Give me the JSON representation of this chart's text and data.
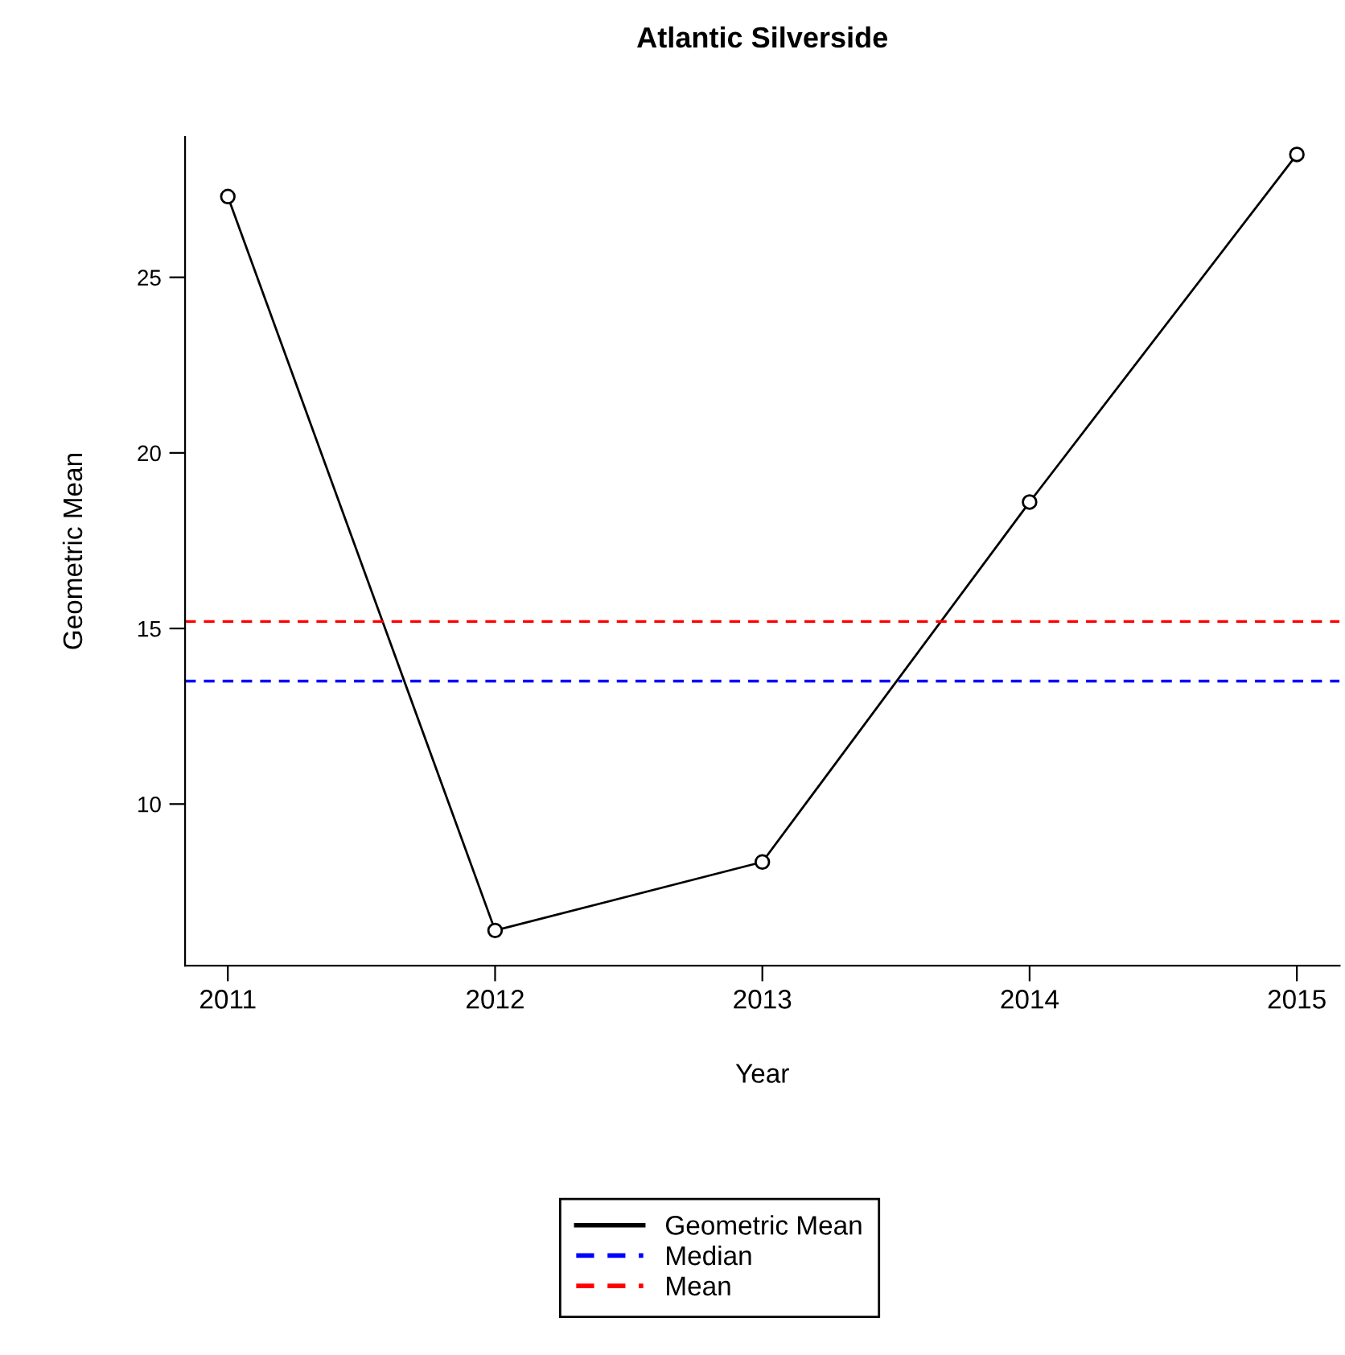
{
  "chart_data": {
    "type": "line",
    "title": "Atlantic Silverside",
    "xlabel": "Year",
    "ylabel": "Geometric Mean",
    "x": [
      2011,
      2012,
      2013,
      2014,
      2015
    ],
    "series": [
      {
        "name": "Geometric Mean",
        "color": "#000000",
        "values": [
          27.3,
          6.4,
          8.35,
          18.6,
          28.5
        ]
      }
    ],
    "ref_lines": [
      {
        "axis": "y",
        "value": 13.5,
        "label": "Median",
        "color": "#0000ff",
        "line_style": "dashed"
      },
      {
        "axis": "y",
        "value": 15.2,
        "label": "Mean",
        "color": "#ff0000",
        "line_style": "dashed"
      }
    ],
    "xlim": [
      2010.84,
      2015.16
    ],
    "ylim": [
      5.4,
      29.0
    ],
    "xticks": [
      2011,
      2012,
      2013,
      2014,
      2015
    ],
    "yticks": [
      10,
      15,
      20,
      25
    ],
    "marker": "circle",
    "line_style": "solid",
    "grid": false,
    "legend": "bottom"
  }
}
